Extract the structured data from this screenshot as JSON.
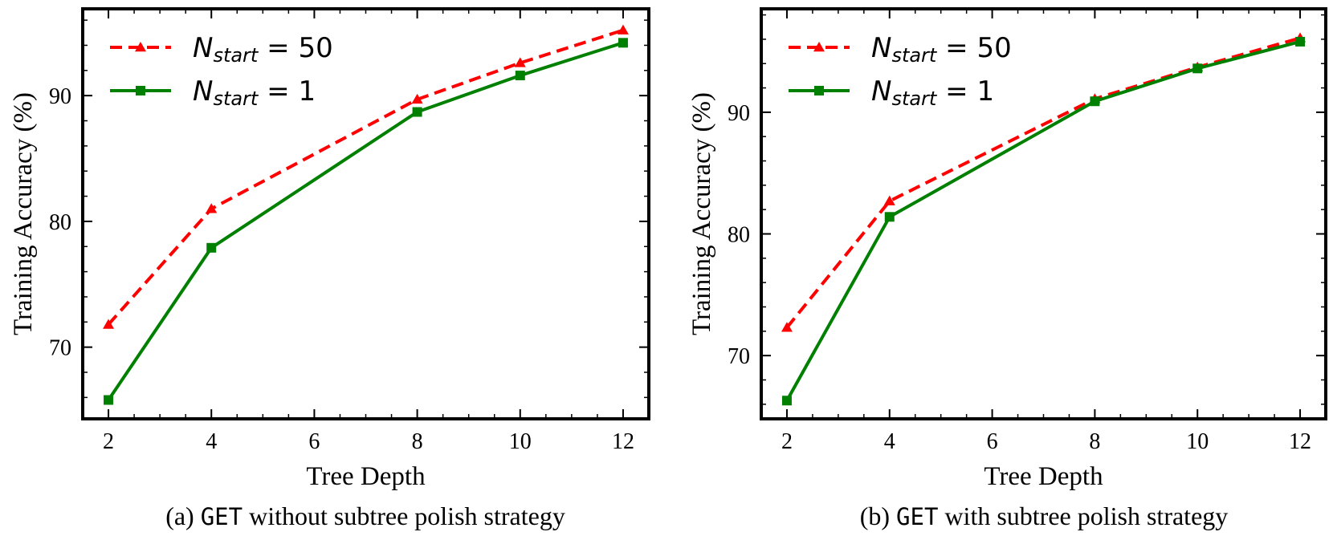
{
  "chart_data": [
    {
      "type": "line",
      "panel": "a",
      "x": [
        2,
        4,
        8,
        10,
        12
      ],
      "xticks": [
        "2",
        "4",
        "6",
        "8",
        "10",
        "12"
      ],
      "yticks": [
        "70",
        "80",
        "90"
      ],
      "xlim": [
        1.5,
        12.5
      ],
      "ylim": [
        64.3,
        96.9
      ],
      "xlabel": "Tree Depth",
      "ylabel": "Training Accuracy (%)",
      "caption_prefix": "(a) ",
      "caption_code": "GET",
      "caption_suffix": " without subtree polish strategy",
      "legend_position": "top-left",
      "series": [
        {
          "name": "N_start = 50",
          "legend_main": "N",
          "legend_sub": "start",
          "legend_value": " = 50",
          "color": "#ff0000",
          "style": "dashed",
          "marker": "triangle",
          "values": [
            71.8,
            81.0,
            89.7,
            92.6,
            95.2
          ]
        },
        {
          "name": "N_start = 1",
          "legend_main": "N",
          "legend_sub": "start",
          "legend_value": " = 1",
          "color": "#008000",
          "style": "solid",
          "marker": "square",
          "values": [
            65.8,
            77.9,
            88.7,
            91.6,
            94.2
          ]
        }
      ]
    },
    {
      "type": "line",
      "panel": "b",
      "x": [
        2,
        4,
        8,
        10,
        12
      ],
      "xticks": [
        "2",
        "4",
        "6",
        "8",
        "10",
        "12"
      ],
      "yticks": [
        "70",
        "80",
        "90"
      ],
      "xlim": [
        1.5,
        12.5
      ],
      "ylim": [
        64.8,
        98.5
      ],
      "xlabel": "Tree Depth",
      "ylabel": "Training Accuracy (%)",
      "caption_prefix": "(b) ",
      "caption_code": "GET",
      "caption_suffix": " with subtree polish strategy",
      "legend_position": "top-left",
      "series": [
        {
          "name": "N_start = 50",
          "legend_main": "N",
          "legend_sub": "start",
          "legend_value": " = 50",
          "color": "#ff0000",
          "style": "dashed",
          "marker": "triangle",
          "values": [
            72.3,
            82.7,
            91.1,
            93.7,
            96.1
          ]
        },
        {
          "name": "N_start = 1",
          "legend_main": "N",
          "legend_sub": "start",
          "legend_value": " = 1",
          "color": "#008000",
          "style": "solid",
          "marker": "square",
          "values": [
            66.3,
            81.4,
            90.9,
            93.6,
            95.8
          ]
        }
      ]
    }
  ]
}
